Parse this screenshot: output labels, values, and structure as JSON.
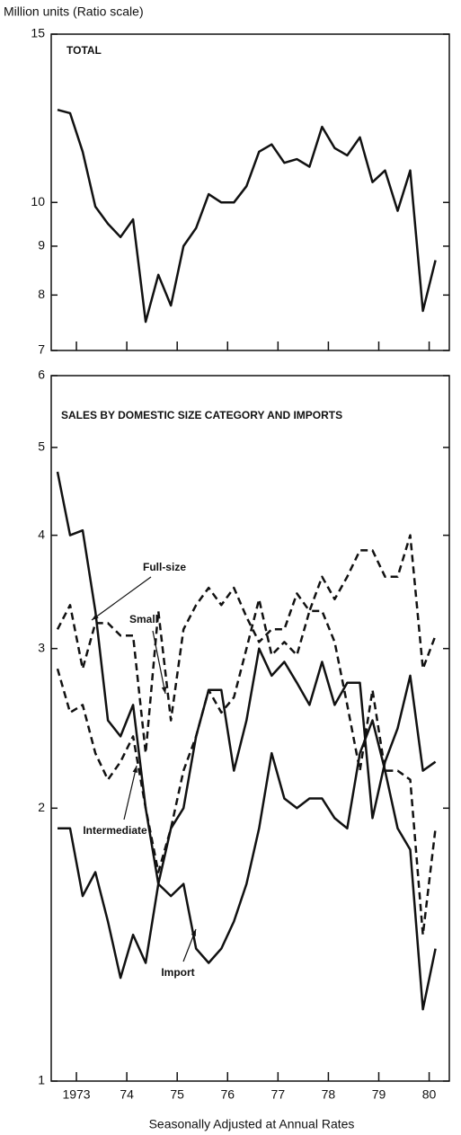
{
  "chart_data": [
    {
      "type": "line",
      "title": "TOTAL",
      "ylabel": "Million units (Ratio scale)",
      "log_scale": true,
      "x": [
        1973.125,
        1973.375,
        1973.625,
        1973.875,
        1974.125,
        1974.375,
        1974.625,
        1974.875,
        1975.125,
        1975.375,
        1975.625,
        1975.875,
        1976.125,
        1976.375,
        1976.625,
        1976.875,
        1977.125,
        1977.375,
        1977.625,
        1977.875,
        1978.125,
        1978.375,
        1978.625,
        1978.875,
        1979.125,
        1979.375,
        1979.625,
        1979.875,
        1980.125,
        1980.375,
        1980.625
      ],
      "xlim": [
        1973,
        1980.9
      ],
      "ylim": [
        7,
        15
      ],
      "yticks": [
        7,
        8,
        9,
        10,
        15
      ],
      "series": [
        {
          "name": "Total",
          "color": "#111111",
          "dashed": false,
          "values": [
            12.5,
            12.4,
            11.3,
            9.9,
            9.5,
            9.2,
            9.6,
            7.5,
            8.4,
            7.8,
            9.0,
            9.4,
            10.2,
            10.0,
            10.0,
            10.4,
            11.3,
            11.5,
            11.0,
            11.1,
            10.9,
            12.0,
            11.4,
            11.2,
            11.7,
            10.5,
            10.8,
            9.8,
            10.8,
            7.7,
            8.7
          ]
        }
      ]
    },
    {
      "type": "line",
      "title": "SALES BY DOMESTIC SIZE CATEGORY AND IMPORTS",
      "xlabel": "Seasonally Adjusted at Annual Rates",
      "log_scale": true,
      "x": [
        1973.125,
        1973.375,
        1973.625,
        1973.875,
        1974.125,
        1974.375,
        1974.625,
        1974.875,
        1975.125,
        1975.375,
        1975.625,
        1975.875,
        1976.125,
        1976.375,
        1976.625,
        1976.875,
        1977.125,
        1977.375,
        1977.625,
        1977.875,
        1978.125,
        1978.375,
        1978.625,
        1978.875,
        1979.125,
        1979.375,
        1979.625,
        1979.875,
        1980.125,
        1980.375,
        1980.625
      ],
      "xlim": [
        1973,
        1980.9
      ],
      "xticks": [
        {
          "value": 1973.5,
          "label": "1973"
        },
        {
          "value": 1974.5,
          "label": "74"
        },
        {
          "value": 1975.5,
          "label": "75"
        },
        {
          "value": 1976.5,
          "label": "76"
        },
        {
          "value": 1977.5,
          "label": "77"
        },
        {
          "value": 1978.5,
          "label": "78"
        },
        {
          "value": 1979.5,
          "label": "79"
        },
        {
          "value": 1980.5,
          "label": "80"
        }
      ],
      "ylim": [
        1,
        6
      ],
      "yticks": [
        1,
        2,
        3,
        4,
        5,
        6
      ],
      "series": [
        {
          "name": "Full-size",
          "color": "#111111",
          "dashed": false,
          "values": [
            4.7,
            4.0,
            4.05,
            3.3,
            2.5,
            2.4,
            2.6,
            2.0,
            1.65,
            1.9,
            2.0,
            2.4,
            2.7,
            2.7,
            2.2,
            2.5,
            3.0,
            2.8,
            2.9,
            2.75,
            2.6,
            2.9,
            2.6,
            2.75,
            2.75,
            1.95,
            2.25,
            2.45,
            2.8,
            2.2,
            2.25
          ]
        },
        {
          "name": "Small",
          "color": "#111111",
          "dashed": true,
          "values": [
            3.15,
            3.35,
            2.85,
            3.2,
            3.2,
            3.1,
            3.1,
            2.3,
            3.3,
            2.5,
            3.15,
            3.35,
            3.5,
            3.35,
            3.5,
            3.25,
            3.05,
            3.15,
            3.15,
            3.45,
            3.3,
            3.6,
            3.4,
            3.6,
            3.85,
            3.85,
            3.6,
            3.6,
            4.0,
            2.85,
            3.1
          ]
        },
        {
          "name": "Intermediate",
          "color": "#111111",
          "dashed": true,
          "values": [
            2.85,
            2.55,
            2.6,
            2.3,
            2.15,
            2.25,
            2.4,
            2.0,
            1.7,
            1.9,
            2.2,
            2.4,
            2.7,
            2.55,
            2.65,
            3.0,
            3.4,
            2.95,
            3.05,
            2.95,
            3.3,
            3.3,
            3.05,
            2.6,
            2.2,
            2.7,
            2.2,
            2.2,
            2.15,
            1.45,
            1.9
          ]
        },
        {
          "name": "Import",
          "color": "#111111",
          "dashed": false,
          "values": [
            1.9,
            1.9,
            1.6,
            1.7,
            1.5,
            1.3,
            1.45,
            1.35,
            1.65,
            1.6,
            1.65,
            1.4,
            1.35,
            1.4,
            1.5,
            1.65,
            1.9,
            2.3,
            2.05,
            2.0,
            2.05,
            2.05,
            1.95,
            1.9,
            2.3,
            2.5,
            2.2,
            1.9,
            1.8,
            1.2,
            1.4
          ]
        }
      ]
    }
  ]
}
